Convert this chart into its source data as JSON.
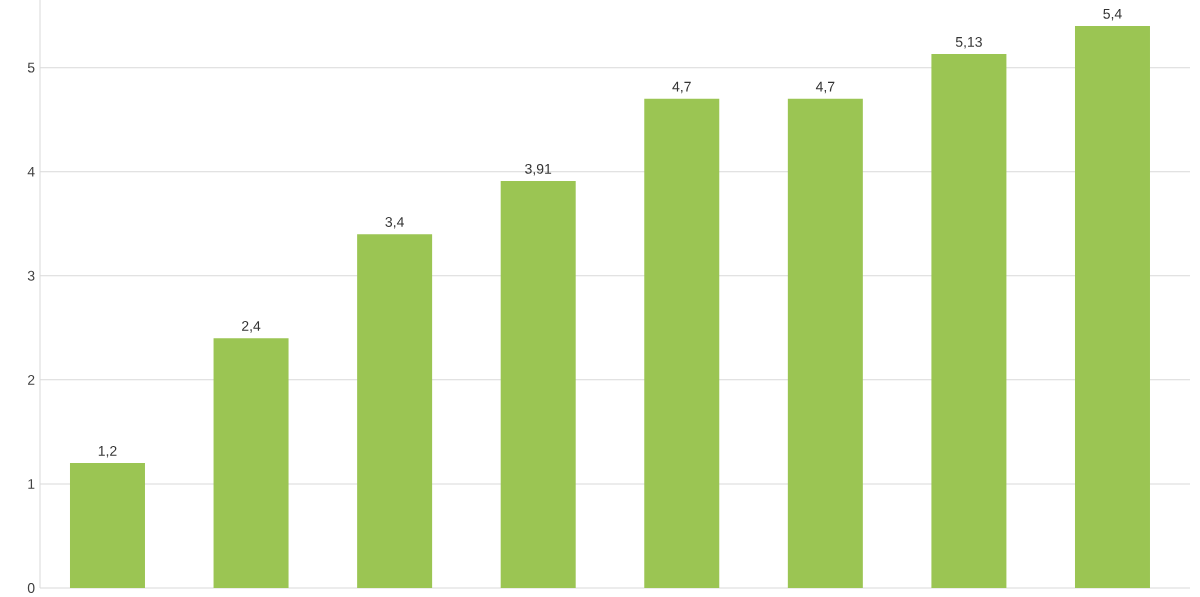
{
  "chart_data": {
    "type": "bar",
    "categories": [
      null,
      null,
      null,
      null,
      null,
      null,
      null,
      null
    ],
    "values": [
      1.2,
      2.4,
      3.4,
      3.91,
      4.7,
      4.7,
      5.13,
      5.4
    ],
    "value_labels": [
      "1,2",
      "2,4",
      "3,4",
      "3,91",
      "4,7",
      "4,7",
      "5,13",
      "5,4"
    ],
    "color": "#9bc553",
    "ylim": [
      0,
      5.65
    ],
    "yticks": [
      0,
      1,
      2,
      3,
      4,
      5
    ],
    "grid": "y"
  }
}
